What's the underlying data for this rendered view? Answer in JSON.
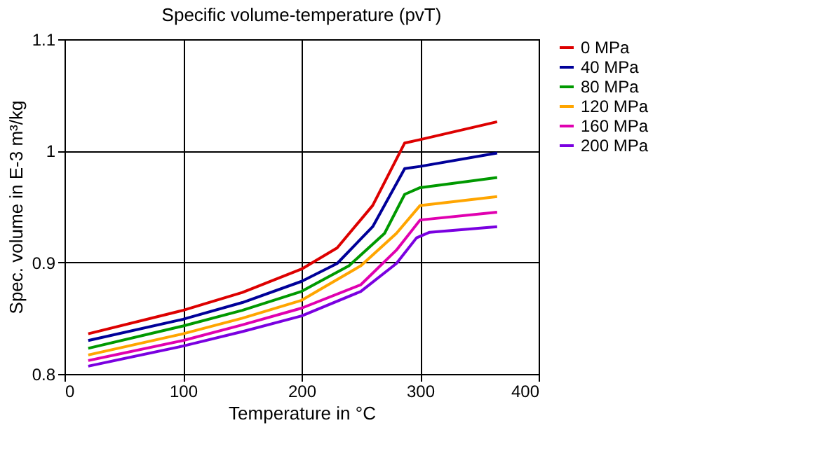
{
  "chart_data": {
    "type": "line",
    "title": "Specific volume-temperature (pvT)",
    "xlabel": "Temperature in °C",
    "ylabel": "Spec. volume in E-3 m³/kg",
    "xlim": [
      0,
      400
    ],
    "xticks": [
      0,
      100,
      200,
      300,
      400
    ],
    "ylim": [
      0.8,
      1.1
    ],
    "yticks": [
      0.8,
      0.9,
      {
        "value": 1,
        "label": "1"
      },
      1.1
    ],
    "grid": true,
    "legend": "right",
    "line_style": "solid",
    "series": [
      {
        "name": "0 MPa",
        "color": "#dd0000",
        "x": [
          20,
          100,
          150,
          200,
          230,
          260,
          287,
          300,
          365
        ],
        "values": [
          0.836,
          0.857,
          0.873,
          0.894,
          0.913,
          0.951,
          1.007,
          1.01,
          1.026
        ]
      },
      {
        "name": "40 MPa",
        "color": "#000099",
        "x": [
          20,
          100,
          150,
          200,
          230,
          260,
          287,
          300,
          365
        ],
        "values": [
          0.83,
          0.849,
          0.864,
          0.883,
          0.899,
          0.932,
          0.984,
          0.986,
          0.998
        ]
      },
      {
        "name": "80 MPa",
        "color": "#009900",
        "x": [
          20,
          100,
          150,
          200,
          240,
          270,
          287,
          300,
          365
        ],
        "values": [
          0.823,
          0.843,
          0.857,
          0.874,
          0.897,
          0.926,
          0.961,
          0.967,
          0.976
        ]
      },
      {
        "name": "120 MPa",
        "color": "#ffa500",
        "x": [
          20,
          100,
          150,
          200,
          250,
          280,
          300,
          365
        ],
        "values": [
          0.817,
          0.836,
          0.85,
          0.866,
          0.897,
          0.926,
          0.951,
          0.959
        ]
      },
      {
        "name": "160 MPa",
        "color": "#e000b0",
        "x": [
          20,
          100,
          150,
          200,
          250,
          280,
          300,
          365
        ],
        "values": [
          0.812,
          0.83,
          0.844,
          0.859,
          0.88,
          0.911,
          0.938,
          0.945
        ]
      },
      {
        "name": "200 MPa",
        "color": "#7a00e0",
        "x": [
          20,
          100,
          150,
          200,
          250,
          280,
          297,
          308,
          365
        ],
        "values": [
          0.807,
          0.825,
          0.838,
          0.852,
          0.874,
          0.899,
          0.922,
          0.927,
          0.932
        ]
      }
    ]
  }
}
